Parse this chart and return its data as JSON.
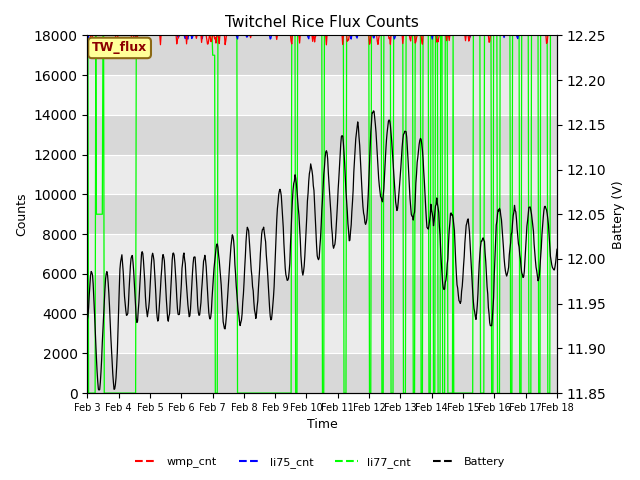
{
  "title": "Twitchel Rice Flux Counts",
  "xlabel": "Time",
  "ylabel_left": "Counts",
  "ylabel_right": "Battery (V)",
  "ylim_left": [
    0,
    18000
  ],
  "ylim_right": [
    11.85,
    12.25
  ],
  "yticks_left": [
    0,
    2000,
    4000,
    6000,
    8000,
    10000,
    12000,
    14000,
    16000,
    18000
  ],
  "yticks_right": [
    11.85,
    11.9,
    11.95,
    12.0,
    12.05,
    12.1,
    12.15,
    12.2,
    12.25
  ],
  "xtick_labels": [
    "Feb 3",
    "Feb 4",
    "Feb 5",
    "Feb 6",
    "Feb 7",
    "Feb 8",
    "Feb 9",
    "Feb 10",
    "Feb 11",
    "Feb 12",
    "Feb 13",
    "Feb 14",
    "Feb 15",
    "Feb 16",
    "Feb 17",
    "Feb 18"
  ],
  "wmp_color": "#FF0000",
  "li75_color": "#0000FF",
  "li77_color": "#00FF00",
  "battery_color": "#000000",
  "background_color": "#FFFFFF",
  "plot_bg_light": "#EBEBEB",
  "plot_bg_dark": "#D8D8D8",
  "grid_color": "#FFFFFF",
  "annotation_text": "TW_flux",
  "legend_items": [
    "wmp_cnt",
    "li75_cnt",
    "li77_cnt",
    "Battery"
  ],
  "legend_colors": [
    "#FF0000",
    "#0000FF",
    "#00FF00",
    "#000000"
  ]
}
